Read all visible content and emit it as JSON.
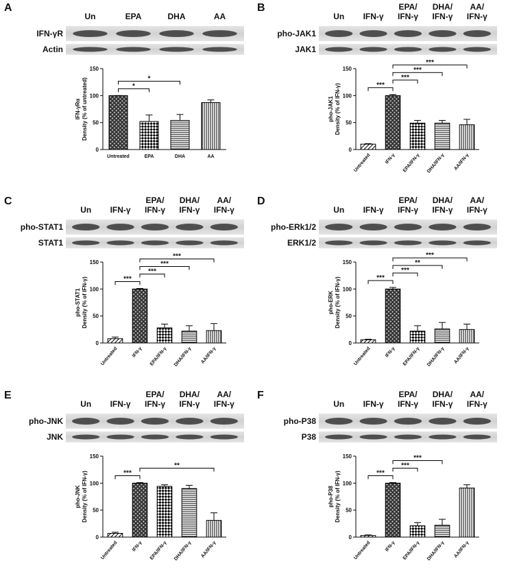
{
  "chart_data": [
    {
      "type": "bar",
      "panel": "A",
      "lanes": [
        [
          "Un"
        ],
        [
          "EPA"
        ],
        [
          "DHA"
        ],
        [
          "AA"
        ]
      ],
      "blots": [
        "IFN-γR",
        "Actin"
      ],
      "ylabel_top": "IFN-γRα",
      "ylabel": "Density (% of untreated)",
      "categories": [
        "Untreated",
        "EPA",
        "DHA",
        "AA"
      ],
      "values": [
        100,
        52,
        54,
        87
      ],
      "errors": [
        0,
        12,
        11,
        5
      ],
      "patterns": [
        "cross",
        "check",
        "hlines",
        "vlines"
      ],
      "ylim": [
        0,
        150
      ],
      "yticks": [
        0,
        50,
        100,
        150
      ],
      "xlabel_rotation": 0,
      "significance": [
        {
          "from": 0,
          "to": 1,
          "label": "*"
        },
        {
          "from": 0,
          "to": 2,
          "label": "*"
        }
      ]
    },
    {
      "type": "bar",
      "panel": "B",
      "lanes": [
        [
          "Un"
        ],
        [
          "IFN-γ"
        ],
        [
          "EPA/",
          "IFN-γ"
        ],
        [
          "DHA/",
          "IFN-γ"
        ],
        [
          "AA/",
          "IFN-γ"
        ]
      ],
      "blots": [
        "pho-JAK1",
        "JAK1"
      ],
      "ylabel_top": "pho-JAK1",
      "ylabel": "Density (% of IFN-γ)",
      "categories": [
        "Untreated",
        "IFN-γ",
        "EPA/IFN-γ",
        "DHA/IFN-γ",
        "AA/IFN-γ"
      ],
      "values": [
        10,
        100,
        49,
        49,
        46
      ],
      "errors": [
        1,
        2,
        5,
        5,
        10
      ],
      "patterns": [
        "diag",
        "cross",
        "check",
        "hlines",
        "vlines"
      ],
      "ylim": [
        0,
        150
      ],
      "yticks": [
        0,
        50,
        100,
        150
      ],
      "xlabel_rotation": -50,
      "significance": [
        {
          "from": 1,
          "to": 0,
          "label": "***"
        },
        {
          "from": 1,
          "to": 2,
          "label": "***"
        },
        {
          "from": 1,
          "to": 3,
          "label": "***"
        },
        {
          "from": 1,
          "to": 4,
          "label": "***"
        }
      ]
    },
    {
      "type": "bar",
      "panel": "C",
      "lanes": [
        [
          "Un"
        ],
        [
          "IFN-γ"
        ],
        [
          "EPA/",
          "IFN-γ"
        ],
        [
          "DHA/",
          "IFN-γ"
        ],
        [
          "AA/",
          "IFN-γ"
        ]
      ],
      "blots": [
        "pho-STAT1",
        "STAT1"
      ],
      "ylabel_top": "pho-STAT1",
      "ylabel": "Density (% of IFN-γ)",
      "categories": [
        "Untreated",
        "IFN-γ",
        "EPA/IFN-γ",
        "DHA/IFN-γ",
        "AA/IFN-γ"
      ],
      "values": [
        8,
        100,
        28,
        22,
        23
      ],
      "errors": [
        3,
        1,
        7,
        10,
        13
      ],
      "patterns": [
        "diag",
        "cross",
        "check",
        "hlines",
        "vlines"
      ],
      "ylim": [
        0,
        150
      ],
      "yticks": [
        0,
        50,
        100,
        150
      ],
      "xlabel_rotation": -50,
      "significance": [
        {
          "from": 1,
          "to": 0,
          "label": "***"
        },
        {
          "from": 1,
          "to": 2,
          "label": "***"
        },
        {
          "from": 1,
          "to": 3,
          "label": "***"
        },
        {
          "from": 1,
          "to": 4,
          "label": "***"
        }
      ]
    },
    {
      "type": "bar",
      "panel": "D",
      "lanes": [
        [
          "Un"
        ],
        [
          "IFN-γ"
        ],
        [
          "EPA/",
          "IFN-γ"
        ],
        [
          "DHA/",
          "IFN-γ"
        ],
        [
          "AA/",
          "IFN-γ"
        ]
      ],
      "blots": [
        "pho-ERk1/2",
        "ERK1/2"
      ],
      "ylabel_top": "pho-ERK",
      "ylabel": "Density (% of IFN-γ)",
      "categories": [
        "Untreated",
        "IFN-γ",
        "EPA/IFN-γ",
        "DHA/IFN-γ",
        "AA/IFN-γ"
      ],
      "values": [
        6,
        100,
        22,
        26,
        25
      ],
      "errors": [
        1,
        3,
        10,
        12,
        10
      ],
      "patterns": [
        "diag",
        "cross",
        "check",
        "hlines",
        "vlines"
      ],
      "ylim": [
        0,
        150
      ],
      "yticks": [
        0,
        50,
        100,
        150
      ],
      "xlabel_rotation": -50,
      "significance": [
        {
          "from": 1,
          "to": 0,
          "label": "***"
        },
        {
          "from": 1,
          "to": 2,
          "label": "***"
        },
        {
          "from": 1,
          "to": 3,
          "label": "**"
        },
        {
          "from": 1,
          "to": 4,
          "label": "***"
        }
      ]
    },
    {
      "type": "bar",
      "panel": "E",
      "lanes": [
        [
          "Un"
        ],
        [
          "IFN-γ"
        ],
        [
          "EPA/",
          "IFN-γ"
        ],
        [
          "DHA/",
          "IFN-γ"
        ],
        [
          "AA/",
          "IFN-γ"
        ]
      ],
      "blots": [
        "pho-JNK",
        "JNK"
      ],
      "ylabel_top": "pho-JNK",
      "ylabel": "Density (% of IFN-γ)",
      "categories": [
        "Untreated",
        "IFN-γ",
        "EPA/IFN-γ",
        "DHA/IFN-γ",
        "AA/IFN-γ"
      ],
      "values": [
        7,
        100,
        94,
        90,
        31
      ],
      "errors": [
        2,
        1,
        3,
        6,
        14
      ],
      "patterns": [
        "diag",
        "cross",
        "check",
        "hlines",
        "vlines"
      ],
      "ylim": [
        0,
        150
      ],
      "yticks": [
        0,
        50,
        100,
        150
      ],
      "xlabel_rotation": -50,
      "significance": [
        {
          "from": 1,
          "to": 0,
          "label": "***"
        },
        {
          "from": 1,
          "to": 4,
          "label": "**"
        }
      ]
    },
    {
      "type": "bar",
      "panel": "F",
      "lanes": [
        [
          "Un"
        ],
        [
          "IFN-γ"
        ],
        [
          "EPA/",
          "IFN-γ"
        ],
        [
          "DHA/",
          "IFN-γ"
        ],
        [
          "AA/",
          "IFN-γ"
        ]
      ],
      "blots": [
        "pho-P38",
        "P38"
      ],
      "ylabel_top": "pho-P38",
      "ylabel": "Density (% of IFN-γ)",
      "categories": [
        "Untreated",
        "IFN-γ",
        "EPA/IFN-γ",
        "DHA/IFN-γ",
        "AA/IFN-γ"
      ],
      "values": [
        3,
        100,
        21,
        22,
        91
      ],
      "errors": [
        1,
        1,
        6,
        11,
        6
      ],
      "patterns": [
        "diag",
        "cross",
        "check",
        "hlines",
        "vlines"
      ],
      "ylim": [
        0,
        150
      ],
      "yticks": [
        0,
        50,
        100,
        150
      ],
      "xlabel_rotation": -50,
      "significance": [
        {
          "from": 1,
          "to": 0,
          "label": "***"
        },
        {
          "from": 1,
          "to": 2,
          "label": "***"
        },
        {
          "from": 1,
          "to": 3,
          "label": "***"
        }
      ]
    }
  ]
}
